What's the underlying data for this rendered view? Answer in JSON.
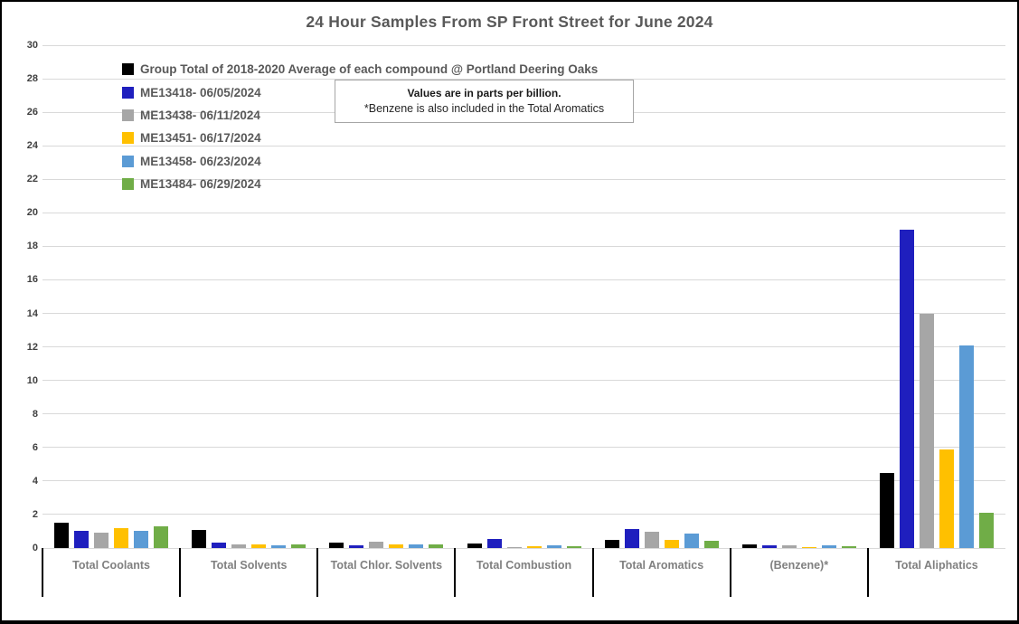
{
  "title": "24 Hour Samples From SP Front Street for June 2024",
  "note": {
    "line1": "Values are in parts per billion.",
    "line2": "*Benzene is also included in the Total Aromatics"
  },
  "chart_data": {
    "type": "bar",
    "title": "24 Hour Samples From SP Front Street for June 2024",
    "categories": [
      "Total Coolants",
      "Total Solvents",
      "Total Chlor. Solvents",
      "Total Combustion",
      "Total Aromatics",
      "(Benzene)*",
      "Total Aliphatics"
    ],
    "series": [
      {
        "name": "Group Total of 2018-2020 Average of each compound @ Portland Deering Oaks",
        "color": "#000000",
        "values": [
          1.5,
          1.1,
          0.3,
          0.25,
          0.5,
          0.2,
          4.5
        ]
      },
      {
        "name": "ME13418- 06/05/2024",
        "color": "#1f1fbe",
        "values": [
          1.05,
          0.35,
          0.15,
          0.55,
          1.15,
          0.15,
          19.0
        ]
      },
      {
        "name": "ME13438- 06/11/2024",
        "color": "#a6a6a6",
        "values": [
          0.9,
          0.2,
          0.4,
          0.08,
          0.95,
          0.15,
          14.0
        ]
      },
      {
        "name": "ME13451- 06/17/2024",
        "color": "#ffc000",
        "values": [
          1.2,
          0.2,
          0.2,
          0.1,
          0.5,
          0.07,
          5.9
        ]
      },
      {
        "name": "ME13458- 06/23/2024",
        "color": "#5b9bd5",
        "values": [
          1.0,
          0.15,
          0.22,
          0.18,
          0.85,
          0.15,
          12.1
        ]
      },
      {
        "name": "ME13484- 06/29/2024",
        "color": "#70ad47",
        "values": [
          1.3,
          0.2,
          0.2,
          0.12,
          0.45,
          0.09,
          2.1
        ]
      }
    ],
    "ylim": [
      0,
      30
    ],
    "ytick_step": 2,
    "grid": true,
    "legend_position": "top-left",
    "annotation": "Values are in parts per billion. *Benzene is also included in the Total Aromatics"
  },
  "colors": {
    "gridline": "#d9d9d9",
    "axis_label_text": "#404040",
    "category_label_text": "#808080",
    "title_text": "#595959",
    "legend_text": "#595959",
    "category_separator": "#000000",
    "border": "#000000",
    "background": "#ffffff"
  }
}
